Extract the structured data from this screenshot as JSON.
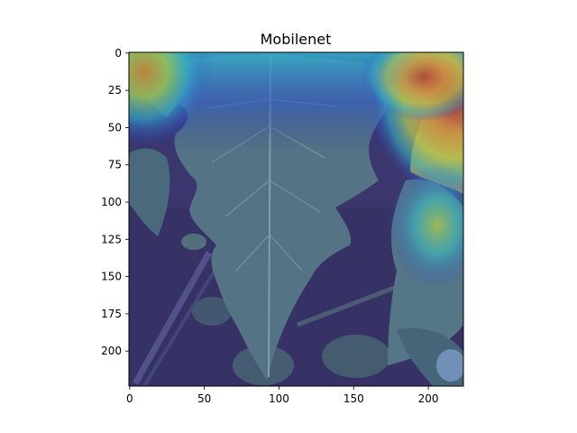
{
  "title": "Mobilenet",
  "x_ticks": [
    "0",
    "50",
    "100",
    "150",
    "200"
  ],
  "y_ticks": [
    "0",
    "25",
    "50",
    "75",
    "100",
    "125",
    "150",
    "175",
    "200"
  ],
  "x_tick_values": [
    0,
    50,
    100,
    150,
    200
  ],
  "y_tick_values": [
    0,
    25,
    50,
    75,
    100,
    125,
    150,
    175,
    200
  ],
  "extent": {
    "xmin": -0.5,
    "xmax": 223.5,
    "ymin": -0.5,
    "ymax": 223.5
  },
  "colors": {
    "background": "#ffffff",
    "axes": "#000000",
    "soil": "#3e3a6b",
    "leaf": "#5a7f86",
    "leaf_vein": "#8fb0b4"
  }
}
